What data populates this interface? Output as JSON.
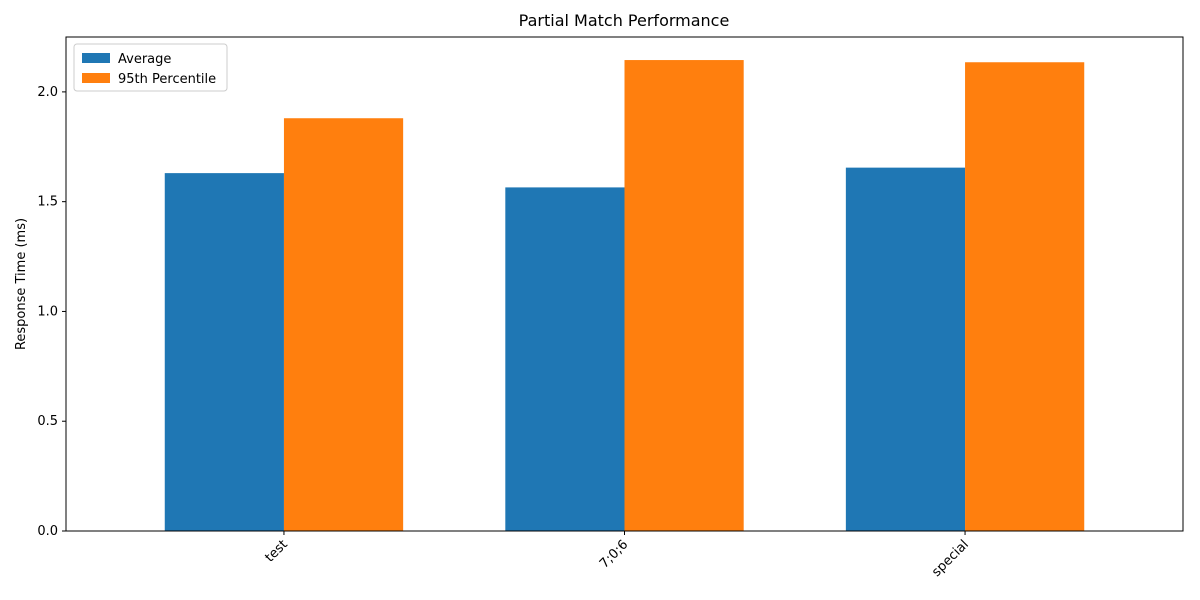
{
  "chart_data": {
    "type": "bar",
    "title": "Partial Match Performance",
    "xlabel": "",
    "ylabel": "Response Time (ms)",
    "categories": [
      "test",
      "7;0;6",
      "special"
    ],
    "series": [
      {
        "name": "Average",
        "color": "#1f77b4",
        "values": [
          1.63,
          1.565,
          1.655
        ]
      },
      {
        "name": "95th Percentile",
        "color": "#ff7f0e",
        "values": [
          1.88,
          2.145,
          2.135
        ]
      }
    ],
    "yticks": [
      0.0,
      0.5,
      1.0,
      1.5,
      2.0
    ],
    "ytick_labels": [
      "0.0",
      "0.5",
      "1.0",
      "1.5",
      "2.0"
    ],
    "ylim": [
      0,
      2.25
    ],
    "legend_position": "top-left",
    "grid": false,
    "xtick_rotation_deg": 45
  }
}
